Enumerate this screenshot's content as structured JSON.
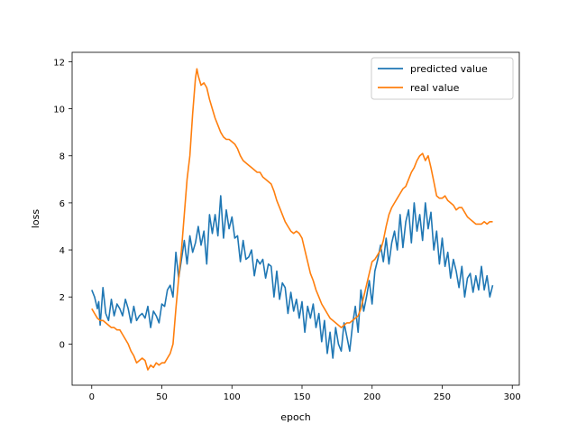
{
  "chart_data": {
    "type": "line",
    "title": "",
    "xlabel": "epoch",
    "ylabel": "loss",
    "xlim": [
      -14,
      305
    ],
    "ylim": [
      -1.75,
      12.4
    ],
    "x_ticks": [
      0,
      50,
      100,
      150,
      200,
      250,
      300
    ],
    "y_ticks": [
      0,
      2,
      4,
      6,
      8,
      10,
      12
    ],
    "grid": false,
    "legend_position": "top-right",
    "series": [
      {
        "name": "predicted value",
        "color": "#1f77b4",
        "points": [
          [
            0,
            2.3
          ],
          [
            2,
            2.0
          ],
          [
            4,
            1.5
          ],
          [
            5,
            1.8
          ],
          [
            6,
            0.8
          ],
          [
            8,
            2.4
          ],
          [
            10,
            1.3
          ],
          [
            12,
            1.0
          ],
          [
            14,
            1.9
          ],
          [
            16,
            1.2
          ],
          [
            18,
            1.7
          ],
          [
            20,
            1.5
          ],
          [
            22,
            1.2
          ],
          [
            24,
            1.9
          ],
          [
            26,
            1.5
          ],
          [
            28,
            0.9
          ],
          [
            30,
            1.6
          ],
          [
            32,
            1.0
          ],
          [
            34,
            1.2
          ],
          [
            36,
            1.3
          ],
          [
            38,
            1.1
          ],
          [
            40,
            1.6
          ],
          [
            42,
            0.7
          ],
          [
            44,
            1.4
          ],
          [
            46,
            1.2
          ],
          [
            48,
            0.9
          ],
          [
            50,
            1.7
          ],
          [
            52,
            1.6
          ],
          [
            54,
            2.3
          ],
          [
            56,
            2.5
          ],
          [
            58,
            2.0
          ],
          [
            60,
            3.9
          ],
          [
            62,
            2.8
          ],
          [
            64,
            3.6
          ],
          [
            66,
            4.4
          ],
          [
            68,
            3.4
          ],
          [
            70,
            4.6
          ],
          [
            72,
            3.9
          ],
          [
            74,
            4.3
          ],
          [
            76,
            5.0
          ],
          [
            78,
            4.2
          ],
          [
            80,
            4.8
          ],
          [
            82,
            3.4
          ],
          [
            84,
            5.5
          ],
          [
            86,
            4.7
          ],
          [
            88,
            5.5
          ],
          [
            90,
            4.6
          ],
          [
            92,
            6.3
          ],
          [
            94,
            4.5
          ],
          [
            96,
            5.7
          ],
          [
            98,
            4.9
          ],
          [
            100,
            5.4
          ],
          [
            102,
            4.5
          ],
          [
            104,
            4.6
          ],
          [
            106,
            3.5
          ],
          [
            108,
            4.4
          ],
          [
            110,
            3.6
          ],
          [
            112,
            3.7
          ],
          [
            114,
            4.0
          ],
          [
            116,
            2.9
          ],
          [
            118,
            3.6
          ],
          [
            120,
            3.4
          ],
          [
            122,
            3.6
          ],
          [
            124,
            2.8
          ],
          [
            126,
            3.4
          ],
          [
            128,
            3.3
          ],
          [
            130,
            2.0
          ],
          [
            132,
            3.1
          ],
          [
            134,
            1.9
          ],
          [
            136,
            2.6
          ],
          [
            138,
            2.4
          ],
          [
            140,
            1.3
          ],
          [
            142,
            2.2
          ],
          [
            144,
            1.4
          ],
          [
            146,
            1.9
          ],
          [
            148,
            1.1
          ],
          [
            150,
            1.8
          ],
          [
            152,
            0.5
          ],
          [
            154,
            1.6
          ],
          [
            156,
            1.1
          ],
          [
            158,
            1.7
          ],
          [
            160,
            0.7
          ],
          [
            162,
            1.3
          ],
          [
            164,
            0.1
          ],
          [
            166,
            1.0
          ],
          [
            168,
            -0.4
          ],
          [
            170,
            0.5
          ],
          [
            172,
            -0.6
          ],
          [
            174,
            0.7
          ],
          [
            176,
            0.0
          ],
          [
            178,
            -0.3
          ],
          [
            180,
            0.9
          ],
          [
            182,
            0.3
          ],
          [
            184,
            -0.3
          ],
          [
            186,
            0.8
          ],
          [
            188,
            1.6
          ],
          [
            190,
            0.5
          ],
          [
            192,
            2.3
          ],
          [
            194,
            1.4
          ],
          [
            196,
            2.0
          ],
          [
            198,
            2.7
          ],
          [
            200,
            1.7
          ],
          [
            202,
            3.1
          ],
          [
            204,
            3.6
          ],
          [
            206,
            4.2
          ],
          [
            208,
            3.5
          ],
          [
            210,
            4.5
          ],
          [
            212,
            3.4
          ],
          [
            214,
            4.3
          ],
          [
            216,
            4.8
          ],
          [
            218,
            4.0
          ],
          [
            220,
            5.5
          ],
          [
            222,
            4.1
          ],
          [
            224,
            5.2
          ],
          [
            226,
            5.7
          ],
          [
            228,
            4.3
          ],
          [
            230,
            6.0
          ],
          [
            232,
            4.8
          ],
          [
            234,
            5.5
          ],
          [
            236,
            4.4
          ],
          [
            238,
            6.0
          ],
          [
            240,
            4.9
          ],
          [
            242,
            5.6
          ],
          [
            244,
            4.0
          ],
          [
            246,
            4.8
          ],
          [
            248,
            3.4
          ],
          [
            250,
            4.5
          ],
          [
            252,
            3.3
          ],
          [
            254,
            3.9
          ],
          [
            256,
            2.8
          ],
          [
            258,
            3.6
          ],
          [
            260,
            3.1
          ],
          [
            262,
            2.4
          ],
          [
            264,
            3.3
          ],
          [
            266,
            2.0
          ],
          [
            268,
            2.8
          ],
          [
            270,
            3.0
          ],
          [
            272,
            2.2
          ],
          [
            274,
            2.9
          ],
          [
            276,
            2.3
          ],
          [
            278,
            3.3
          ],
          [
            280,
            2.3
          ],
          [
            282,
            2.9
          ],
          [
            284,
            2.0
          ],
          [
            286,
            2.5
          ]
        ]
      },
      {
        "name": "real value",
        "color": "#ff7f0e",
        "points": [
          [
            0,
            1.5
          ],
          [
            2,
            1.3
          ],
          [
            4,
            1.1
          ],
          [
            6,
            1.0
          ],
          [
            8,
            1.0
          ],
          [
            10,
            0.9
          ],
          [
            12,
            0.8
          ],
          [
            14,
            0.7
          ],
          [
            16,
            0.7
          ],
          [
            18,
            0.6
          ],
          [
            20,
            0.6
          ],
          [
            22,
            0.4
          ],
          [
            24,
            0.2
          ],
          [
            26,
            0.0
          ],
          [
            28,
            -0.3
          ],
          [
            30,
            -0.5
          ],
          [
            32,
            -0.8
          ],
          [
            34,
            -0.7
          ],
          [
            36,
            -0.6
          ],
          [
            38,
            -0.7
          ],
          [
            40,
            -1.1
          ],
          [
            42,
            -0.9
          ],
          [
            44,
            -1.0
          ],
          [
            46,
            -0.8
          ],
          [
            48,
            -0.9
          ],
          [
            50,
            -0.8
          ],
          [
            52,
            -0.8
          ],
          [
            54,
            -0.6
          ],
          [
            56,
            -0.4
          ],
          [
            58,
            0.0
          ],
          [
            60,
            1.5
          ],
          [
            62,
            2.8
          ],
          [
            64,
            4.0
          ],
          [
            66,
            5.5
          ],
          [
            68,
            7.0
          ],
          [
            70,
            8.0
          ],
          [
            72,
            9.8
          ],
          [
            74,
            11.3
          ],
          [
            75,
            11.7
          ],
          [
            76,
            11.4
          ],
          [
            78,
            11.0
          ],
          [
            80,
            11.1
          ],
          [
            82,
            10.9
          ],
          [
            84,
            10.4
          ],
          [
            86,
            10.0
          ],
          [
            88,
            9.6
          ],
          [
            90,
            9.3
          ],
          [
            92,
            9.0
          ],
          [
            94,
            8.8
          ],
          [
            96,
            8.7
          ],
          [
            98,
            8.7
          ],
          [
            100,
            8.6
          ],
          [
            102,
            8.5
          ],
          [
            104,
            8.3
          ],
          [
            106,
            8.0
          ],
          [
            108,
            7.8
          ],
          [
            110,
            7.7
          ],
          [
            112,
            7.6
          ],
          [
            114,
            7.5
          ],
          [
            116,
            7.4
          ],
          [
            118,
            7.3
          ],
          [
            120,
            7.3
          ],
          [
            122,
            7.1
          ],
          [
            124,
            7.0
          ],
          [
            126,
            6.9
          ],
          [
            128,
            6.8
          ],
          [
            130,
            6.5
          ],
          [
            132,
            6.1
          ],
          [
            134,
            5.8
          ],
          [
            136,
            5.5
          ],
          [
            138,
            5.2
          ],
          [
            140,
            5.0
          ],
          [
            142,
            4.8
          ],
          [
            144,
            4.7
          ],
          [
            146,
            4.8
          ],
          [
            148,
            4.7
          ],
          [
            150,
            4.5
          ],
          [
            152,
            4.0
          ],
          [
            154,
            3.5
          ],
          [
            156,
            3.0
          ],
          [
            158,
            2.7
          ],
          [
            160,
            2.3
          ],
          [
            162,
            2.0
          ],
          [
            164,
            1.7
          ],
          [
            166,
            1.5
          ],
          [
            168,
            1.3
          ],
          [
            170,
            1.1
          ],
          [
            172,
            1.0
          ],
          [
            174,
            0.9
          ],
          [
            176,
            0.8
          ],
          [
            178,
            0.7
          ],
          [
            180,
            0.8
          ],
          [
            182,
            0.9
          ],
          [
            184,
            0.9
          ],
          [
            186,
            1.0
          ],
          [
            188,
            1.1
          ],
          [
            190,
            1.2
          ],
          [
            192,
            1.5
          ],
          [
            194,
            2.0
          ],
          [
            196,
            2.5
          ],
          [
            198,
            3.0
          ],
          [
            200,
            3.5
          ],
          [
            202,
            3.6
          ],
          [
            204,
            3.8
          ],
          [
            206,
            4.0
          ],
          [
            208,
            4.4
          ],
          [
            210,
            5.0
          ],
          [
            212,
            5.5
          ],
          [
            214,
            5.8
          ],
          [
            216,
            6.0
          ],
          [
            218,
            6.2
          ],
          [
            220,
            6.4
          ],
          [
            222,
            6.6
          ],
          [
            224,
            6.7
          ],
          [
            226,
            7.0
          ],
          [
            228,
            7.3
          ],
          [
            230,
            7.5
          ],
          [
            232,
            7.8
          ],
          [
            234,
            8.0
          ],
          [
            236,
            8.1
          ],
          [
            238,
            7.8
          ],
          [
            240,
            8.0
          ],
          [
            242,
            7.5
          ],
          [
            244,
            6.9
          ],
          [
            246,
            6.3
          ],
          [
            248,
            6.2
          ],
          [
            250,
            6.2
          ],
          [
            252,
            6.3
          ],
          [
            254,
            6.1
          ],
          [
            256,
            6.0
          ],
          [
            258,
            5.9
          ],
          [
            260,
            5.7
          ],
          [
            262,
            5.8
          ],
          [
            264,
            5.8
          ],
          [
            266,
            5.6
          ],
          [
            268,
            5.4
          ],
          [
            270,
            5.3
          ],
          [
            272,
            5.2
          ],
          [
            274,
            5.1
          ],
          [
            276,
            5.1
          ],
          [
            278,
            5.1
          ],
          [
            280,
            5.2
          ],
          [
            282,
            5.1
          ],
          [
            284,
            5.2
          ],
          [
            286,
            5.2
          ]
        ]
      }
    ]
  }
}
